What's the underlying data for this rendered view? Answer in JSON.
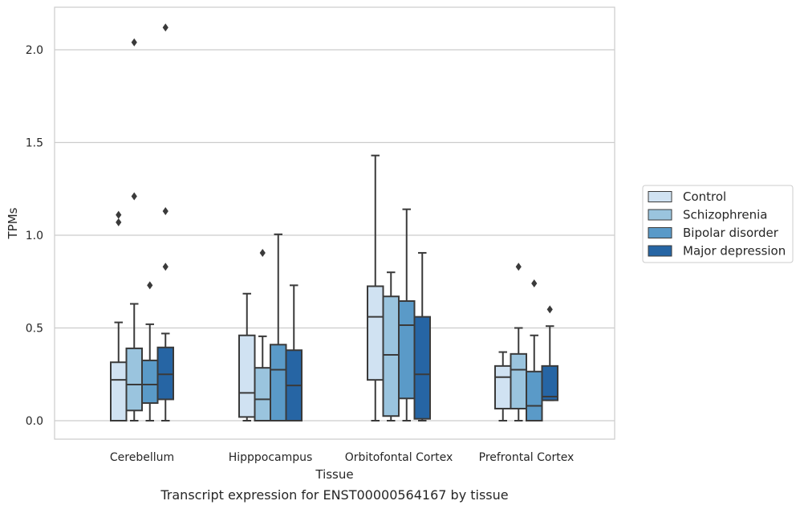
{
  "chart_data": {
    "type": "box",
    "title": "",
    "xlabel": "Tissue",
    "ylabel": "TPMs",
    "caption": "Transcript expression for ENST00000564167 by tissue",
    "ylim": [
      -0.1,
      2.25
    ],
    "yticks": [
      0.0,
      0.5,
      1.0,
      1.5,
      2.0
    ],
    "ytick_labels": [
      "0.0",
      "0.5",
      "1.0",
      "1.5",
      "2.0"
    ],
    "grid": "horizontal",
    "legend_position": "right",
    "categories": [
      "Cerebellum",
      "Hipppocampus",
      "Orbitofontal Cortex",
      "Prefrontal Cortex"
    ],
    "series": [
      {
        "name": "Control",
        "color": "#d0e2f2",
        "boxes": [
          {
            "min": 0.0,
            "q1": 0.0,
            "median": 0.22,
            "q3": 0.315,
            "max": 0.53,
            "outliers": [
              1.07,
              1.11
            ]
          },
          {
            "min": 0.0,
            "q1": 0.02,
            "median": 0.15,
            "q3": 0.46,
            "max": 0.685,
            "outliers": []
          },
          {
            "min": 0.0,
            "q1": 0.22,
            "median": 0.56,
            "q3": 0.725,
            "max": 1.43,
            "outliers": []
          },
          {
            "min": 0.0,
            "q1": 0.065,
            "median": 0.235,
            "q3": 0.295,
            "max": 0.37,
            "outliers": []
          }
        ]
      },
      {
        "name": "Schizophrenia",
        "color": "#9ac4de",
        "boxes": [
          {
            "min": 0.0,
            "q1": 0.055,
            "median": 0.195,
            "q3": 0.39,
            "max": 0.63,
            "outliers": [
              1.21,
              2.04
            ]
          },
          {
            "min": 0.0,
            "q1": 0.0,
            "median": 0.115,
            "q3": 0.285,
            "max": 0.455,
            "outliers": [
              0.905
            ]
          },
          {
            "min": 0.0,
            "q1": 0.025,
            "median": 0.355,
            "q3": 0.67,
            "max": 0.8,
            "outliers": []
          },
          {
            "min": 0.0,
            "q1": 0.065,
            "median": 0.275,
            "q3": 0.36,
            "max": 0.5,
            "outliers": [
              0.83
            ]
          }
        ]
      },
      {
        "name": "Bipolar disorder",
        "color": "#5a9ac8",
        "boxes": [
          {
            "min": 0.0,
            "q1": 0.095,
            "median": 0.195,
            "q3": 0.325,
            "max": 0.52,
            "outliers": [
              0.73
            ]
          },
          {
            "min": 0.0,
            "q1": 0.0,
            "median": 0.275,
            "q3": 0.41,
            "max": 1.005,
            "outliers": []
          },
          {
            "min": 0.0,
            "q1": 0.12,
            "median": 0.515,
            "q3": 0.645,
            "max": 1.14,
            "outliers": []
          },
          {
            "min": 0.0,
            "q1": 0.0,
            "median": 0.08,
            "q3": 0.265,
            "max": 0.46,
            "outliers": [
              0.74
            ]
          }
        ]
      },
      {
        "name": "Major depression",
        "color": "#2665a4",
        "boxes": [
          {
            "min": 0.0,
            "q1": 0.115,
            "median": 0.25,
            "q3": 0.395,
            "max": 0.47,
            "outliers": [
              0.83,
              1.13,
              2.12
            ]
          },
          {
            "min": 0.0,
            "q1": 0.0,
            "median": 0.19,
            "q3": 0.38,
            "max": 0.73,
            "outliers": []
          },
          {
            "min": 0.0,
            "q1": 0.01,
            "median": 0.25,
            "q3": 0.56,
            "max": 0.905,
            "outliers": []
          },
          {
            "min": 0.11,
            "q1": 0.11,
            "median": 0.13,
            "q3": 0.295,
            "max": 0.51,
            "outliers": [
              0.6
            ]
          }
        ]
      }
    ]
  }
}
